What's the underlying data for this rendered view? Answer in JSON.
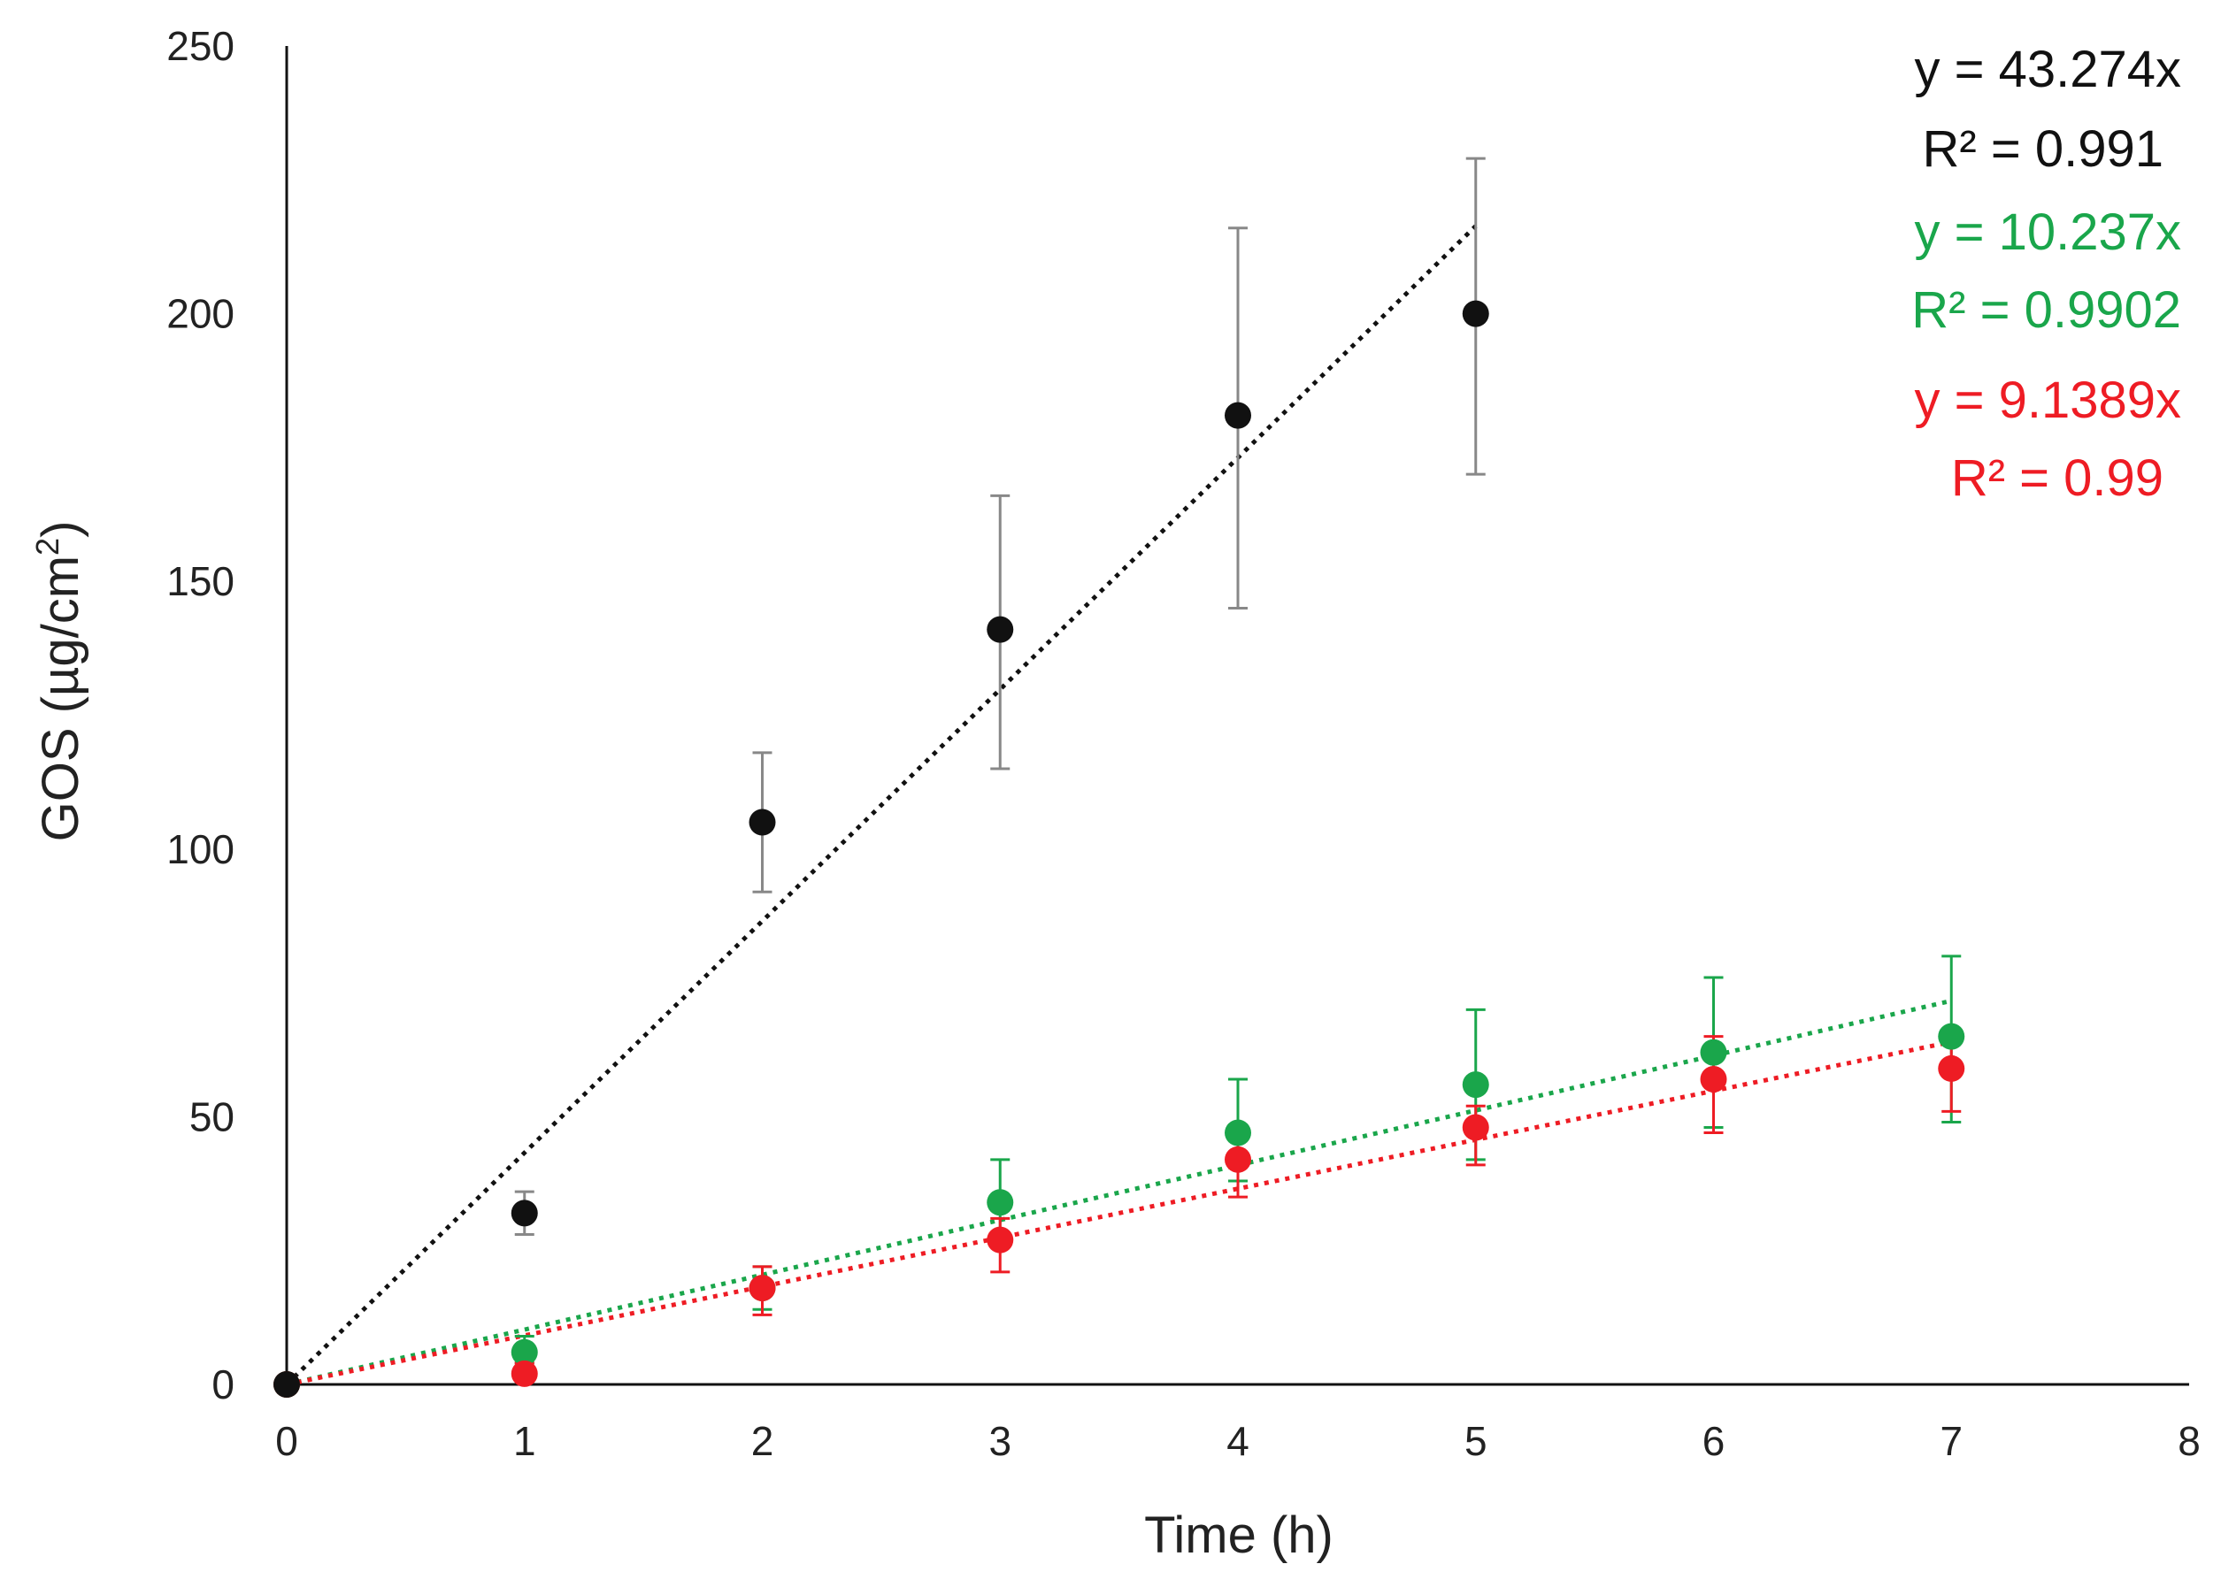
{
  "chart_data": {
    "type": "scatter",
    "title": "",
    "xlabel": "Time (h)",
    "ylabel_main": "GOS (µg/cm",
    "ylabel_sup": "2",
    "ylabel_close": ")",
    "xlim": [
      0,
      8
    ],
    "ylim": [
      0,
      250
    ],
    "x_ticks": [
      0,
      1,
      2,
      3,
      4,
      5,
      6,
      7,
      8
    ],
    "y_ticks": [
      0,
      50,
      100,
      150,
      200,
      250
    ],
    "grid": false,
    "series": [
      {
        "name": "black",
        "color": "#111111",
        "error_color": "#888888",
        "x": [
          0,
          1,
          2,
          3,
          4,
          5
        ],
        "y": [
          0,
          32,
          105,
          141,
          181,
          200
        ],
        "err_upper": [
          0,
          36,
          118,
          166,
          216,
          229
        ],
        "err_lower": [
          0,
          28,
          92,
          115,
          145,
          170
        ],
        "trend": {
          "slope": 43.274,
          "x_end": 5,
          "equation": "y = 43.274x",
          "r2": "R² = 0.991"
        }
      },
      {
        "name": "green",
        "color": "#1aa64b",
        "error_color": "#1aa64b",
        "x": [
          0,
          1,
          2,
          3,
          4,
          5,
          6,
          7
        ],
        "y": [
          0,
          6,
          18,
          34,
          47,
          56,
          62,
          65
        ],
        "err_upper": [
          0,
          9,
          22,
          42,
          57,
          70,
          76,
          80
        ],
        "err_lower": [
          0,
          4,
          14,
          27,
          38,
          42,
          48,
          49
        ],
        "trend": {
          "slope": 10.237,
          "x_end": 7,
          "equation": "y = 10.237x",
          "r2": "R² = 0.9902"
        }
      },
      {
        "name": "red",
        "color": "#ee1c24",
        "error_color": "#ee1c24",
        "x": [
          0,
          1,
          2,
          3,
          4,
          5,
          6,
          7
        ],
        "y": [
          0,
          2,
          18,
          27,
          42,
          48,
          57,
          59
        ],
        "err_upper": [
          0,
          4,
          22,
          31,
          48,
          52,
          65,
          66
        ],
        "err_lower": [
          0,
          1,
          13,
          21,
          35,
          41,
          47,
          51
        ],
        "trend": {
          "slope": 9.1389,
          "x_end": 7,
          "equation": "y = 9.1389x",
          "r2": "R² = 0.99"
        }
      }
    ]
  }
}
